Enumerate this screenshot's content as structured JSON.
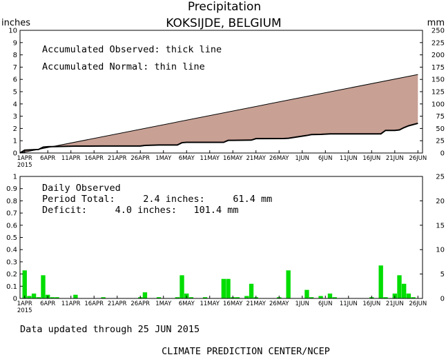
{
  "title": "Precipitation",
  "subtitle": "KOKSIJDE, BELGIUM",
  "units": {
    "left": "inches",
    "right": "mm"
  },
  "updated": "Data updated through 25 JUN 2015",
  "footer": "CLIMATE PREDICTION CENTER/NCEP",
  "colors": {
    "fill": "#c8a094",
    "bars": "#00dd00",
    "axis": "#000000"
  },
  "chart_data": [
    {
      "type": "area",
      "annotations": [
        "Accumulated Observed: thick line",
        "Accumulated Normal: thin line"
      ],
      "x_ticks": [
        "1APR",
        "6APR",
        "11APR",
        "16APR",
        "21APR",
        "26APR",
        "1MAY",
        "6MAY",
        "11MAY",
        "16MAY",
        "21MAY",
        "26MAY",
        "1JUN",
        "6JUN",
        "11JUN",
        "16JUN",
        "21JUN",
        "26JUN"
      ],
      "x_tick_sub": "2015",
      "x_start": "2015-03-31",
      "x_end": "2015-06-26",
      "ylim_left": [
        0,
        10
      ],
      "y_ticks_left": [
        0,
        1,
        2,
        3,
        4,
        5,
        6,
        7,
        8,
        9,
        10
      ],
      "ylim_right": [
        0,
        250
      ],
      "y_ticks_right": [
        0,
        25,
        50,
        75,
        100,
        125,
        150,
        175,
        200,
        225,
        250
      ],
      "series": [
        {
          "name": "Accumulated Observed",
          "x": [
            "2015-03-31",
            "2015-04-01",
            "2015-04-02",
            "2015-04-04",
            "2015-04-05",
            "2015-04-06",
            "2015-04-08",
            "2015-04-12",
            "2015-04-13",
            "2015-04-18",
            "2015-04-26",
            "2015-04-27",
            "2015-04-30",
            "2015-05-04",
            "2015-05-05",
            "2015-05-06",
            "2015-05-07",
            "2015-05-14",
            "2015-05-15",
            "2015-05-16",
            "2015-05-20",
            "2015-05-21",
            "2015-05-27",
            "2015-05-28",
            "2015-06-01",
            "2015-06-02",
            "2015-06-04",
            "2015-06-06",
            "2015-06-07",
            "2015-06-17",
            "2015-06-18",
            "2015-06-20",
            "2015-06-21",
            "2015-06-22",
            "2015-06-23",
            "2015-06-25"
          ],
          "values": [
            0.0,
            0.23,
            0.25,
            0.29,
            0.48,
            0.51,
            0.53,
            0.56,
            0.56,
            0.57,
            0.57,
            0.62,
            0.65,
            0.65,
            0.84,
            0.87,
            0.87,
            0.87,
            1.03,
            1.03,
            1.05,
            1.17,
            1.18,
            1.2,
            1.43,
            1.5,
            1.52,
            1.56,
            1.56,
            1.56,
            1.84,
            1.84,
            1.88,
            2.07,
            2.22,
            2.42
          ]
        },
        {
          "name": "Accumulated Normal",
          "x": [
            "2015-03-31",
            "2015-06-25"
          ],
          "values": [
            0.0,
            6.4
          ]
        }
      ]
    },
    {
      "type": "bar",
      "annotations": [
        "Daily Observed",
        "Period Total:     2.4 inches:     61.4 mm",
        "Deficit:     4.0 inches:   101.4 mm"
      ],
      "x_ticks": [
        "1APR",
        "6APR",
        "11APR",
        "16APR",
        "21APR",
        "26APR",
        "1MAY",
        "6MAY",
        "11MAY",
        "16MAY",
        "21MAY",
        "26MAY",
        "1JUN",
        "6JUN",
        "11JUN",
        "16JUN",
        "21JUN",
        "26JUN"
      ],
      "x_tick_sub": "2015",
      "ylim_left": [
        0,
        1
      ],
      "y_ticks_left": [
        0,
        0.1,
        0.2,
        0.3,
        0.4,
        0.5,
        0.6,
        0.7,
        0.8,
        0.9,
        1
      ],
      "ylim_right": [
        0,
        25
      ],
      "y_ticks_right": [
        0,
        5,
        10,
        15,
        20,
        25
      ],
      "x": [
        "2015-04-01",
        "2015-04-02",
        "2015-04-03",
        "2015-04-04",
        "2015-04-05",
        "2015-04-06",
        "2015-04-07",
        "2015-04-08",
        "2015-04-12",
        "2015-04-18",
        "2015-04-26",
        "2015-04-27",
        "2015-04-30",
        "2015-05-04",
        "2015-05-05",
        "2015-05-06",
        "2015-05-07",
        "2015-05-10",
        "2015-05-14",
        "2015-05-15",
        "2015-05-16",
        "2015-05-17",
        "2015-05-19",
        "2015-05-20",
        "2015-05-21",
        "2015-05-26",
        "2015-05-28",
        "2015-06-01",
        "2015-06-02",
        "2015-06-04",
        "2015-06-06",
        "2015-06-07",
        "2015-06-15",
        "2015-06-17",
        "2015-06-18",
        "2015-06-20",
        "2015-06-21",
        "2015-06-22",
        "2015-06-23",
        "2015-06-24"
      ],
      "values": [
        0.23,
        0.02,
        0.04,
        0.01,
        0.19,
        0.03,
        0.01,
        0.01,
        0.03,
        0.01,
        0.01,
        0.05,
        0.01,
        0.01,
        0.19,
        0.04,
        0.01,
        0.01,
        0.16,
        0.16,
        0.01,
        0.01,
        0.02,
        0.12,
        0.01,
        0.01,
        0.23,
        0.07,
        0.01,
        0.02,
        0.04,
        0.01,
        0.01,
        0.27,
        0.01,
        0.04,
        0.19,
        0.12,
        0.04,
        0.01
      ]
    }
  ]
}
